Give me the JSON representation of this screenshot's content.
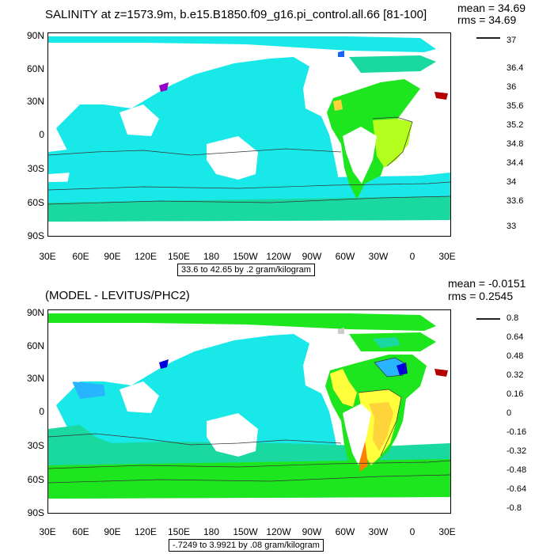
{
  "top": {
    "title": "SALINITY at z=1573.9m, b.e15.B1850.f09_g16.pi_control.all.66 [81-100]",
    "mean": "mean = 34.69",
    "rms": "rms = 34.69",
    "range": "33.6 to 42.65 by .2 gram/kilogram",
    "lat_labels": [
      "90N",
      "60N",
      "30N",
      "0",
      "30S",
      "60S",
      "90S"
    ],
    "lon_labels": [
      "30E",
      "60E",
      "90E",
      "120E",
      "150E",
      "180",
      "150W",
      "120W",
      "90W",
      "60W",
      "30W",
      "0",
      "30E"
    ],
    "colorbar_labels": [
      "37",
      "36.4",
      "36",
      "35.6",
      "35.2",
      "34.8",
      "34.4",
      "34",
      "33.6",
      "33"
    ],
    "colorbar_colors": [
      "#b40000",
      "#e01010",
      "#ff3b00",
      "#ff7f00",
      "#ffa53a",
      "#ffd33a",
      "#ffff3c",
      "#b4ff1e",
      "#1ee61e",
      "#19d8a0",
      "#19e8e8",
      "#28b4ff",
      "#1464ff",
      "#0000dc",
      "#9600c8",
      "#ff00ff",
      "#cccccc",
      "#707070"
    ]
  },
  "bottom": {
    "title": "(MODEL - LEVITUS/PHC2)",
    "mean": "mean = -0.0151",
    "rms": "rms = 0.2545",
    "range": "-.7249 to 3.9921 by .08 gram/kilogram",
    "lat_labels": [
      "90N",
      "60N",
      "30N",
      "0",
      "30S",
      "60S",
      "90S"
    ],
    "lon_labels": [
      "30E",
      "60E",
      "90E",
      "120E",
      "150E",
      "180",
      "150W",
      "120W",
      "90W",
      "60W",
      "30W",
      "0",
      "30E"
    ],
    "colorbar_labels": [
      "0.8",
      "0.64",
      "0.48",
      "0.32",
      "0.16",
      "0",
      "-0.16",
      "-0.32",
      "-0.48",
      "-0.64",
      "-0.8"
    ],
    "colorbar_colors": [
      "#b40000",
      "#e01010",
      "#ff3b00",
      "#ff7f00",
      "#ffa53a",
      "#ffd33a",
      "#ffff3c",
      "#b4ff1e",
      "#1ee61e",
      "#19d8a0",
      "#19e8e8",
      "#28b4ff",
      "#1464ff",
      "#0000dc",
      "#9600c8",
      "#ff00ff",
      "#cccccc",
      "#707070"
    ]
  }
}
